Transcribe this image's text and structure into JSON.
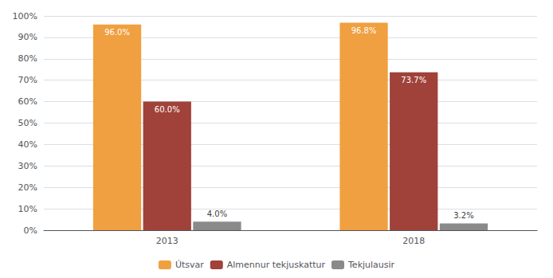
{
  "chart_data": {
    "type": "bar",
    "categories": [
      "2013",
      "2018"
    ],
    "series": [
      {
        "name": "Útsvar",
        "color": "#F0A040",
        "values": [
          96.0,
          96.8
        ],
        "value_labels": [
          "96.0%",
          "96.8%"
        ]
      },
      {
        "name": "Almennur tekjuskattur",
        "color": "#A0423A",
        "values": [
          60.0,
          73.7
        ],
        "value_labels": [
          "60.0%",
          "73.7%"
        ]
      },
      {
        "name": "Tekjulausir",
        "color": "#8A8A8A",
        "values": [
          4.0,
          3.2
        ],
        "value_labels": [
          "4.0%",
          "3.2%"
        ]
      }
    ],
    "ylim": [
      0,
      100
    ],
    "yticks": [
      {
        "value": 0,
        "label": "0%"
      },
      {
        "value": 10,
        "label": "10%"
      },
      {
        "value": 20,
        "label": "20%"
      },
      {
        "value": 30,
        "label": "30%"
      },
      {
        "value": 40,
        "label": "40%"
      },
      {
        "value": 50,
        "label": "50%"
      },
      {
        "value": 60,
        "label": "60%"
      },
      {
        "value": 70,
        "label": "70%"
      },
      {
        "value": 80,
        "label": "80%"
      },
      {
        "value": 90,
        "label": "90%"
      },
      {
        "value": 100,
        "label": "100%"
      }
    ],
    "grid": true,
    "data_labels": true,
    "legend": "bottom"
  }
}
